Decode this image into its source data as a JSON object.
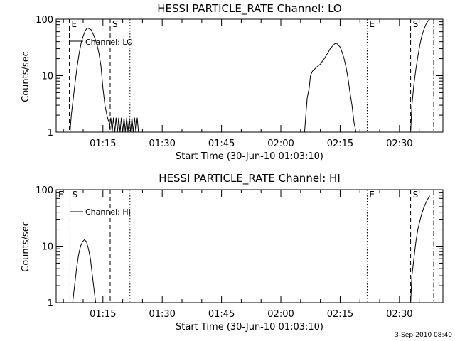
{
  "footer": {
    "timestamp": "3-Sep-2010 08:40"
  },
  "chart_data": [
    {
      "type": "line",
      "title": "HESSI PARTICLE_RATE Channel: LO",
      "xlabel": "Start Time (30-Jun-10 01:03:10)",
      "ylabel": "Counts/sec",
      "xlim": [
        "01:03:10",
        "02:41:00"
      ],
      "ylim": [
        1,
        100
      ],
      "yscale": "log",
      "xticks": [
        "01:15",
        "01:30",
        "01:45",
        "02:00",
        "02:15",
        "02:30"
      ],
      "yticks": [
        1,
        10,
        100
      ],
      "grid": false,
      "legend": {
        "label": "Channel: LO",
        "placement": "upper-left"
      },
      "markers": [
        {
          "label": "E",
          "time": "01:06:30",
          "style": "dashed"
        },
        {
          "label": "S",
          "time": "01:16:50",
          "style": "dashed"
        },
        {
          "label": "",
          "time": "01:21:50",
          "style": "dotted"
        },
        {
          "label": "E",
          "time": "02:21:50",
          "style": "dotted"
        },
        {
          "label": "S",
          "time": "02:32:50",
          "style": "dashed"
        },
        {
          "label": "",
          "time": "02:38:40",
          "style": "dashdot"
        }
      ],
      "series": [
        {
          "segments": [
            [
              [
                "01:06:40",
                1
              ],
              [
                "01:07:00",
                2
              ],
              [
                "01:07:30",
                4
              ],
              [
                "01:08:00",
                8
              ],
              [
                "01:08:30",
                15
              ],
              [
                "01:09:00",
                25
              ],
              [
                "01:09:30",
                38
              ],
              [
                "01:10:00",
                50
              ],
              [
                "01:10:30",
                62
              ],
              [
                "01:11:00",
                70
              ],
              [
                "01:11:30",
                68
              ],
              [
                "01:12:00",
                65
              ],
              [
                "01:12:30",
                55
              ],
              [
                "01:13:00",
                45
              ],
              [
                "01:13:30",
                35
              ],
              [
                "01:14:00",
                25
              ],
              [
                "01:14:30",
                15
              ],
              [
                "01:15:00",
                6
              ],
              [
                "01:15:30",
                3
              ],
              [
                "01:16:00",
                2
              ],
              [
                "01:16:30",
                1.5
              ]
            ],
            [
              [
                "01:16:30",
                1
              ],
              [
                "01:17:00",
                1.8
              ],
              [
                "01:17:20",
                1
              ],
              [
                "01:17:40",
                1.8
              ],
              [
                "01:18:00",
                1
              ],
              [
                "01:18:20",
                1.8
              ],
              [
                "01:18:40",
                1
              ],
              [
                "01:19:00",
                1.8
              ],
              [
                "01:19:20",
                1
              ],
              [
                "01:19:40",
                1.8
              ],
              [
                "01:20:00",
                1
              ],
              [
                "01:20:20",
                1.8
              ],
              [
                "01:20:40",
                1
              ],
              [
                "01:21:00",
                1.8
              ],
              [
                "01:21:20",
                1
              ],
              [
                "01:21:40",
                1.8
              ],
              [
                "01:22:00",
                1
              ],
              [
                "01:22:20",
                1.8
              ],
              [
                "01:22:40",
                1
              ],
              [
                "01:23:00",
                1.8
              ],
              [
                "01:23:20",
                1
              ],
              [
                "01:23:40",
                1.8
              ],
              [
                "01:24:00",
                1
              ]
            ],
            [
              [
                "02:06:00",
                1
              ],
              [
                "02:06:20",
                2
              ],
              [
                "02:06:40",
                4
              ],
              [
                "02:07:10",
                6
              ],
              [
                "02:07:30",
                10
              ],
              [
                "02:08:00",
                12
              ],
              [
                "02:08:30",
                13
              ],
              [
                "02:09:00",
                14
              ],
              [
                "02:09:30",
                15
              ],
              [
                "02:10:00",
                16
              ],
              [
                "02:10:30",
                18
              ],
              [
                "02:11:00",
                20
              ],
              [
                "02:11:30",
                23
              ],
              [
                "02:12:00",
                26
              ],
              [
                "02:12:30",
                30
              ],
              [
                "02:13:00",
                33
              ],
              [
                "02:13:30",
                36
              ],
              [
                "02:14:00",
                38
              ],
              [
                "02:14:30",
                35
              ],
              [
                "02:15:00",
                32
              ],
              [
                "02:15:30",
                26
              ],
              [
                "02:16:00",
                20
              ],
              [
                "02:16:30",
                14
              ],
              [
                "02:17:00",
                9
              ],
              [
                "02:17:30",
                5
              ],
              [
                "02:18:00",
                3
              ],
              [
                "02:18:30",
                1.5
              ],
              [
                "02:19:00",
                1
              ]
            ],
            [
              [
                "02:32:50",
                1
              ],
              [
                "02:33:10",
                3
              ],
              [
                "02:33:40",
                7
              ],
              [
                "02:34:10",
                13
              ],
              [
                "02:34:40",
                22
              ],
              [
                "02:35:10",
                35
              ],
              [
                "02:35:40",
                50
              ],
              [
                "02:36:10",
                65
              ],
              [
                "02:36:40",
                80
              ],
              [
                "02:37:10",
                92
              ],
              [
                "02:37:40",
                100
              ]
            ]
          ]
        }
      ]
    },
    {
      "type": "line",
      "title": "HESSI PARTICLE_RATE Channel: HI",
      "xlabel": "Start Time (30-Jun-10 01:03:10)",
      "ylabel": "Counts/sec",
      "xlim": [
        "01:03:10",
        "02:41:00"
      ],
      "ylim": [
        1,
        100
      ],
      "yscale": "log",
      "xticks": [
        "01:15",
        "01:30",
        "01:45",
        "02:00",
        "02:15",
        "02:30"
      ],
      "yticks": [
        1,
        10,
        100
      ],
      "grid": false,
      "legend": {
        "label": "Channel: HI",
        "placement": "upper-left"
      },
      "markers": [
        {
          "label": "E",
          "time": "01:03:10",
          "style": "none"
        },
        {
          "label": "S",
          "time": "01:06:40",
          "style": "dashed"
        },
        {
          "label": "",
          "time": "01:16:50",
          "style": "dashed"
        },
        {
          "label": "",
          "time": "01:21:50",
          "style": "dotted"
        },
        {
          "label": "E",
          "time": "02:21:50",
          "style": "dotted"
        },
        {
          "label": "S",
          "time": "02:32:50",
          "style": "dashed"
        },
        {
          "label": "",
          "time": "02:38:40",
          "style": "dashdot"
        }
      ],
      "series": [
        {
          "segments": [
            [
              [
                "01:07:20",
                1
              ],
              [
                "01:07:50",
                2
              ],
              [
                "01:08:20",
                4
              ],
              [
                "01:08:50",
                7
              ],
              [
                "01:09:20",
                10
              ],
              [
                "01:09:50",
                12
              ],
              [
                "01:10:20",
                13
              ],
              [
                "01:10:50",
                12
              ],
              [
                "01:11:20",
                9
              ],
              [
                "01:11:50",
                6
              ],
              [
                "01:12:20",
                3
              ],
              [
                "01:12:50",
                1.5
              ],
              [
                "01:13:10",
                1
              ]
            ],
            [
              [
                "02:32:50",
                1
              ],
              [
                "02:33:10",
                3
              ],
              [
                "02:33:40",
                6
              ],
              [
                "02:34:10",
                12
              ],
              [
                "02:34:40",
                20
              ],
              [
                "02:35:10",
                28
              ],
              [
                "02:35:40",
                38
              ],
              [
                "02:36:10",
                48
              ],
              [
                "02:36:40",
                58
              ],
              [
                "02:37:10",
                68
              ],
              [
                "02:37:40",
                78
              ]
            ]
          ]
        }
      ]
    }
  ]
}
